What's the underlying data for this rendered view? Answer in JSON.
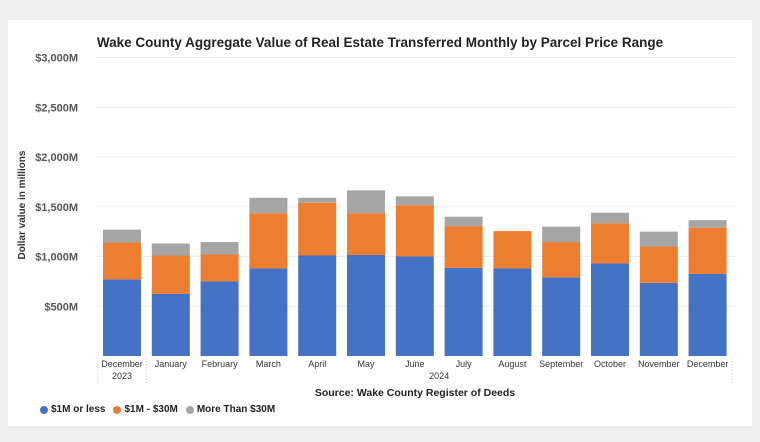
{
  "chart_data": {
    "type": "bar",
    "stacked": true,
    "title": "Wake County Aggregate Value of Real Estate Transferred Monthly by Parcel Price Range",
    "ylabel": "Dollar value in millions",
    "xlabel": "",
    "source": "Source: Wake County Register of Deeds",
    "ylim": [
      0,
      3000
    ],
    "yticks": [
      500,
      1000,
      1500,
      2000,
      2500,
      3000
    ],
    "ytick_labels": [
      "$500M",
      "$1,000M",
      "$1,500M",
      "$2,000M",
      "$2,500M",
      "$3,000M"
    ],
    "grid": true,
    "legend_position": "bottom-left",
    "categories": [
      "December",
      "January",
      "February",
      "March",
      "April",
      "May",
      "June",
      "July",
      "August",
      "September",
      "October",
      "November",
      "December"
    ],
    "year_groups": [
      {
        "label": "2023",
        "from": 0,
        "to": 0
      },
      {
        "label": "2024",
        "from": 1,
        "to": 12
      }
    ],
    "series": [
      {
        "name": "$1M or less",
        "color": "#4472c4",
        "values": [
          770,
          625,
          750,
          880,
          1010,
          1015,
          1000,
          885,
          880,
          790,
          930,
          735,
          825
        ]
      },
      {
        "name": "$1M - $30M",
        "color": "#ed7d31",
        "values": [
          370,
          385,
          270,
          555,
          530,
          420,
          515,
          420,
          375,
          355,
          405,
          365,
          465
        ]
      },
      {
        "name": "More Than $30M",
        "color": "#a5a5a5",
        "values": [
          130,
          120,
          125,
          155,
          50,
          230,
          90,
          95,
          0,
          155,
          105,
          150,
          75
        ]
      }
    ]
  }
}
